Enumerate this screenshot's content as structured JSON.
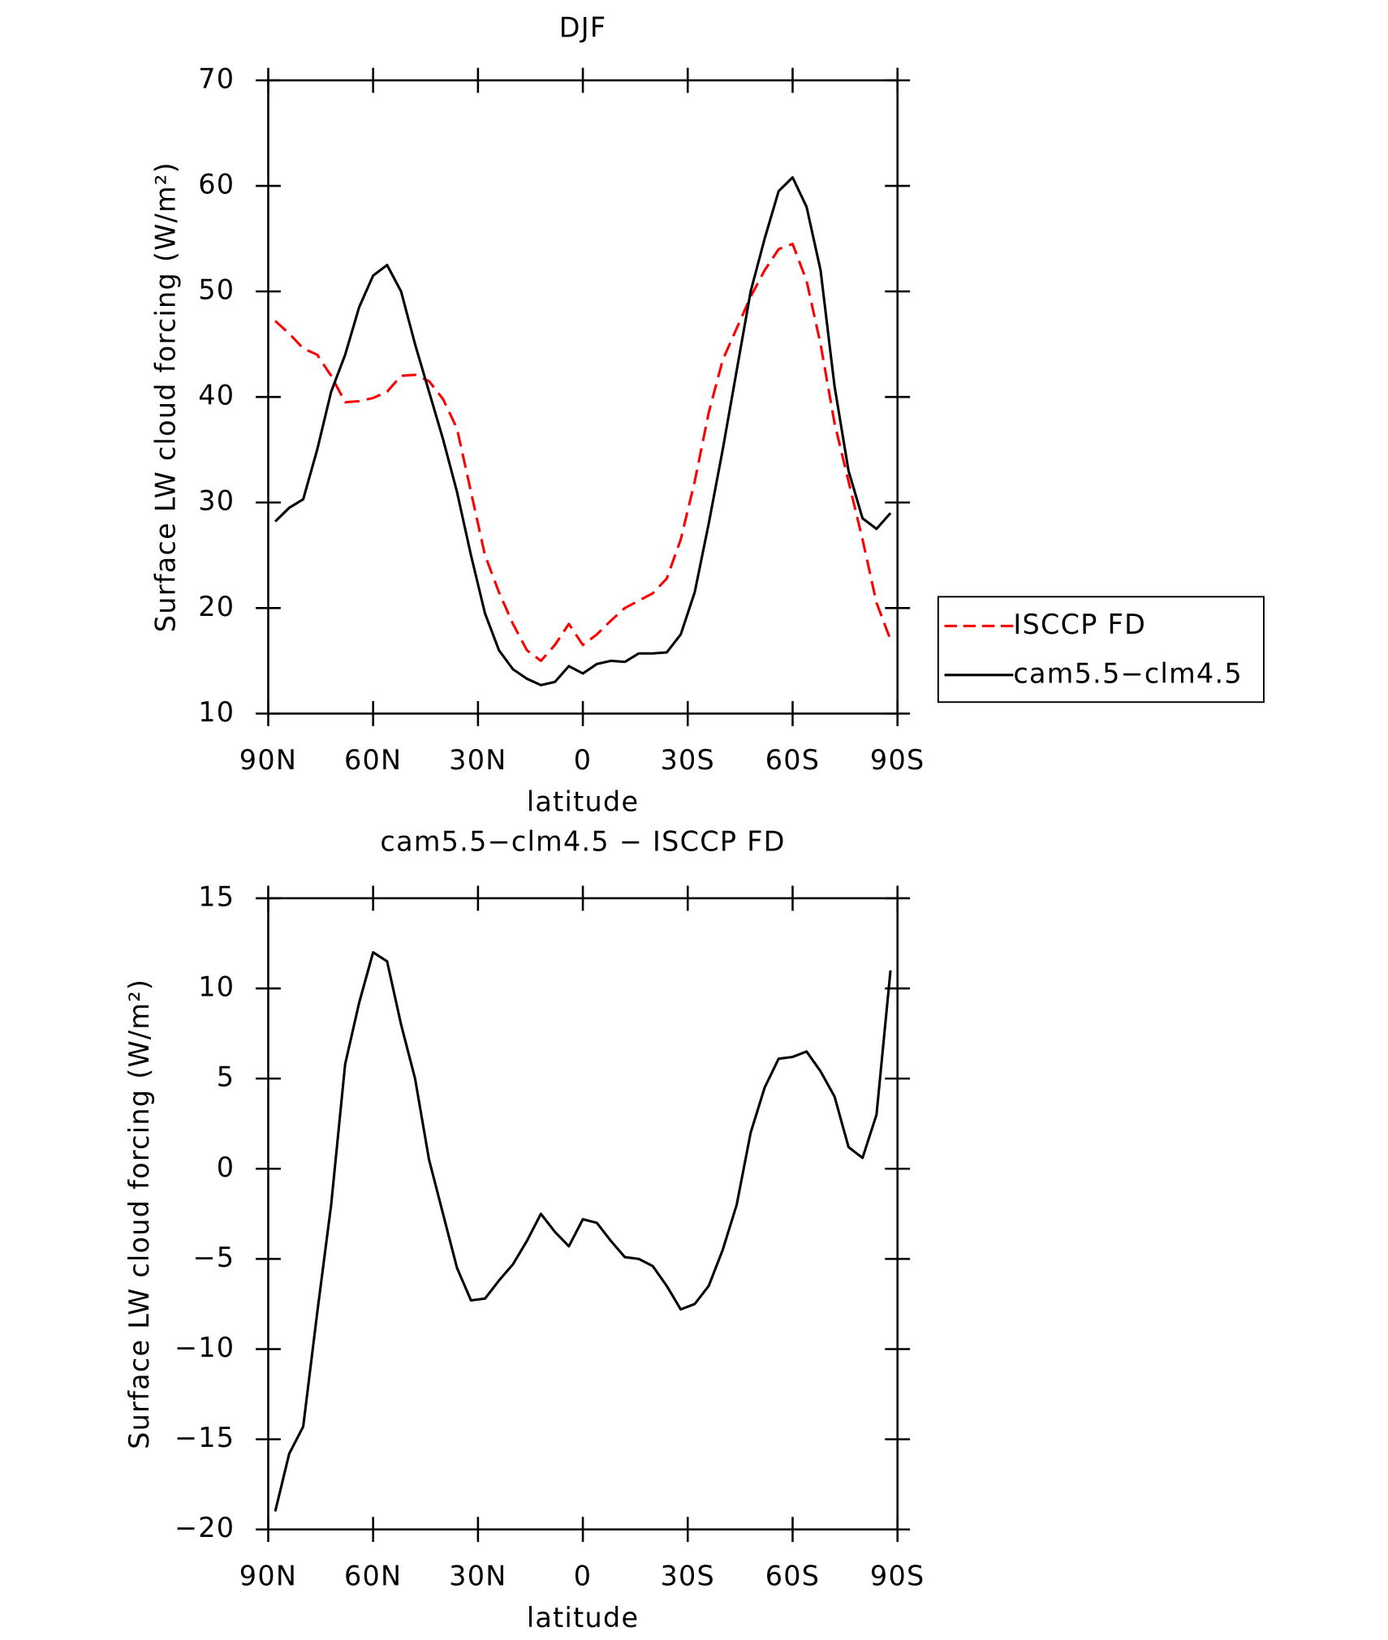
{
  "chart_data": [
    {
      "type": "line",
      "title": "DJF",
      "xlabel": "latitude",
      "ylabel": "Surface LW cloud forcing (W/m²)",
      "x": [
        88,
        84,
        80,
        76,
        72,
        68,
        64,
        60,
        56,
        52,
        48,
        44,
        40,
        36,
        32,
        28,
        24,
        20,
        16,
        12,
        8,
        4,
        0,
        -4,
        -8,
        -12,
        -16,
        -20,
        -24,
        -28,
        -32,
        -36,
        -40,
        -44,
        -48,
        -52,
        -56,
        -60,
        -64,
        -68,
        -72,
        -76,
        -80,
        -84,
        -88
      ],
      "xlim": [
        90,
        -90
      ],
      "xticks": [
        {
          "value": 90,
          "label": "90N"
        },
        {
          "value": 60,
          "label": "60N"
        },
        {
          "value": 30,
          "label": "30N"
        },
        0,
        {
          "value": -30,
          "label": "30S"
        },
        {
          "value": -60,
          "label": "60S"
        },
        {
          "value": -90,
          "label": "90S"
        }
      ],
      "ylim": [
        10,
        70
      ],
      "yticks": [
        10,
        20,
        30,
        40,
        50,
        60,
        70
      ],
      "legend": "right",
      "series": [
        {
          "name": "ISCCP FD",
          "color": "#ff0000",
          "dash": true,
          "values": [
            47.2,
            46,
            44.6,
            44,
            42,
            39.5,
            39.6,
            39.9,
            40.5,
            42,
            42.1,
            41.5,
            39.8,
            37,
            31,
            25,
            21.5,
            18.5,
            16,
            15,
            16.5,
            18.5,
            16.5,
            17.5,
            18.8,
            20,
            20.7,
            21.4,
            22.8,
            26.5,
            32,
            38.5,
            43.5,
            46.5,
            49.5,
            52,
            54,
            54.5,
            51,
            45,
            37.5,
            32,
            26.5,
            20.5,
            17
          ]
        },
        {
          "name": "cam5.5−clm4.5",
          "color": "#000000",
          "dash": false,
          "values": [
            28.2,
            29.5,
            30.3,
            35,
            40.5,
            44,
            48.5,
            51.5,
            52.5,
            50,
            45,
            40.5,
            36,
            31,
            25,
            19.5,
            16,
            14.2,
            13.3,
            12.7,
            13,
            14.5,
            13.8,
            14.7,
            15,
            14.9,
            15.7,
            15.7,
            15.8,
            17.5,
            21.5,
            28,
            35,
            42.5,
            50,
            55,
            59.5,
            60.8,
            58,
            52,
            41,
            33,
            28.5,
            27.5,
            29
          ]
        }
      ]
    },
    {
      "type": "line",
      "title": "cam5.5−clm4.5 − ISCCP FD",
      "xlabel": "latitude",
      "ylabel": "Surface LW cloud forcing (W/m²)",
      "x": [
        88,
        84,
        80,
        76,
        72,
        68,
        64,
        60,
        56,
        52,
        48,
        44,
        40,
        36,
        32,
        28,
        24,
        20,
        16,
        12,
        8,
        4,
        0,
        -4,
        -8,
        -12,
        -16,
        -20,
        -24,
        -28,
        -32,
        -36,
        -40,
        -44,
        -48,
        -52,
        -56,
        -60,
        -64,
        -68,
        -72,
        -76,
        -80,
        -84,
        -88
      ],
      "xlim": [
        90,
        -90
      ],
      "xticks": [
        {
          "value": 90,
          "label": "90N"
        },
        {
          "value": 60,
          "label": "60N"
        },
        {
          "value": 30,
          "label": "30N"
        },
        0,
        {
          "value": -30,
          "label": "30S"
        },
        {
          "value": -60,
          "label": "60S"
        },
        {
          "value": -90,
          "label": "90S"
        }
      ],
      "ylim": [
        -20,
        15
      ],
      "yticks": [
        {
          "value": -20,
          "label": "−20"
        },
        {
          "value": -15,
          "label": "−15"
        },
        {
          "value": -10,
          "label": "−10"
        },
        {
          "value": -5,
          "label": "−5"
        },
        0,
        5,
        10,
        15
      ],
      "series": [
        {
          "color": "#000000",
          "dash": false,
          "values": [
            -19,
            -15.8,
            -14.3,
            -8,
            -2,
            5.8,
            9.2,
            12,
            11.5,
            8,
            5,
            0.5,
            -2.5,
            -5.5,
            -7.3,
            -7.2,
            -6.2,
            -5.3,
            -4,
            -2.5,
            -3.5,
            -4.3,
            -2.8,
            -3,
            -4,
            -4.9,
            -5,
            -5.4,
            -6.5,
            -7.8,
            -7.5,
            -6.5,
            -4.5,
            -2,
            2,
            4.5,
            6.1,
            6.2,
            6.5,
            5.4,
            4,
            1.2,
            0.6,
            3,
            11
          ]
        }
      ]
    }
  ]
}
